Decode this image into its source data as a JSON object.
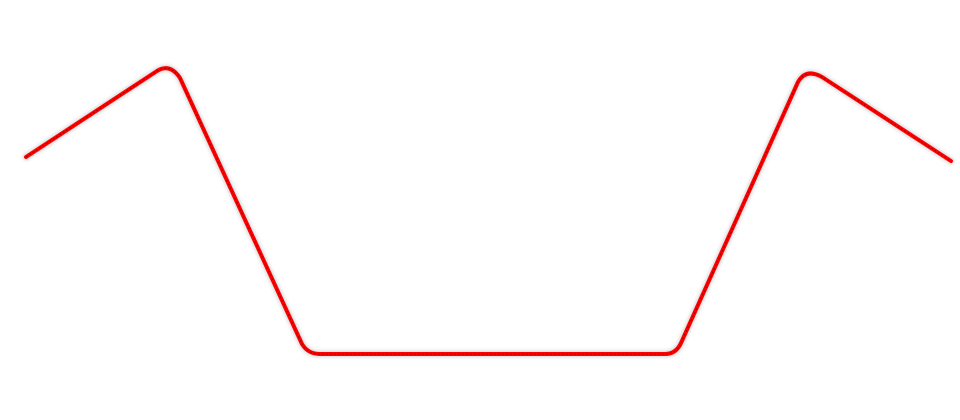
{
  "diagram": {
    "stroke_color": "#ff0000",
    "texture_color": "#7a0000",
    "shadow_color": "#b0b0b0"
  }
}
